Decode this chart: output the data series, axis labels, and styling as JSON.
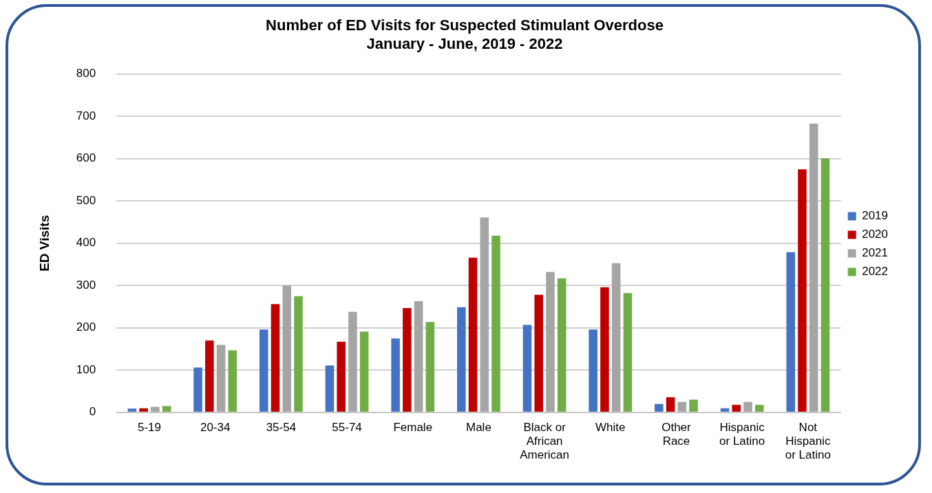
{
  "chart_data": {
    "type": "bar",
    "title": "Number of ED Visits for Suspected Stimulant Overdose",
    "subtitle": "January - June, 2019 - 2022",
    "ylabel": "ED Visits",
    "categories": [
      "5-19",
      "20-34",
      "35-54",
      "55-74",
      "Female",
      "Male",
      "Black or African American",
      "White",
      "Other Race",
      "Hispanic or Latino",
      "Not Hispanic or Latino"
    ],
    "series": [
      {
        "name": "2019",
        "color": "#4472c4",
        "values": [
          9,
          106,
          196,
          111,
          175,
          249,
          207,
          196,
          20,
          10,
          379
        ]
      },
      {
        "name": "2020",
        "color": "#c00000",
        "values": [
          10,
          170,
          256,
          167,
          247,
          366,
          278,
          296,
          36,
          18,
          575
        ]
      },
      {
        "name": "2021",
        "color": "#a5a5a5",
        "values": [
          13,
          160,
          300,
          238,
          263,
          461,
          332,
          353,
          25,
          25,
          683
        ]
      },
      {
        "name": "2022",
        "color": "#70ad47",
        "values": [
          15,
          147,
          275,
          191,
          214,
          418,
          317,
          282,
          30,
          18,
          601
        ]
      }
    ],
    "ylim": [
      0,
      800
    ],
    "yticks": [
      0,
      100,
      200,
      300,
      400,
      500,
      600,
      700,
      800
    ],
    "grid": "y",
    "legend": "right"
  }
}
